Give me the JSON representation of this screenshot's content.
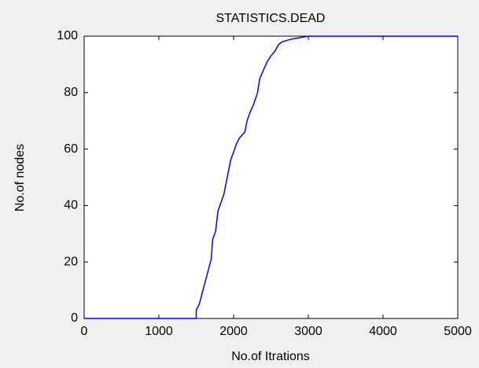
{
  "chart_data": {
    "type": "line",
    "title": "STATISTICS.DEAD",
    "x_label": "No.of Itrations",
    "y_label": "No.of nodes",
    "x": [
      0,
      1500,
      1500,
      1540,
      1580,
      1620,
      1660,
      1700,
      1720,
      1760,
      1790,
      1830,
      1870,
      1900,
      1930,
      1960,
      2000,
      2040,
      2080,
      2150,
      2180,
      2220,
      2270,
      2320,
      2350,
      2400,
      2450,
      2500,
      2560,
      2600,
      2650,
      2780,
      3000,
      5000
    ],
    "series": [
      {
        "name": "dead",
        "color": "#0000ff",
        "values": [
          0,
          0,
          3,
          5,
          9,
          13,
          17,
          21,
          28,
          31,
          38,
          41,
          44,
          48,
          52,
          56,
          59,
          62,
          64,
          66,
          70,
          73,
          76,
          80,
          85,
          88,
          91,
          93,
          95,
          97,
          98,
          99,
          100,
          100
        ]
      }
    ],
    "xlim": [
      0,
      5000
    ],
    "xticks": [
      0,
      1000,
      2000,
      3000,
      4000,
      5000
    ],
    "ylim": [
      0,
      100
    ],
    "yticks": [
      0,
      20,
      40,
      60,
      80,
      100
    ],
    "grid": false
  }
}
